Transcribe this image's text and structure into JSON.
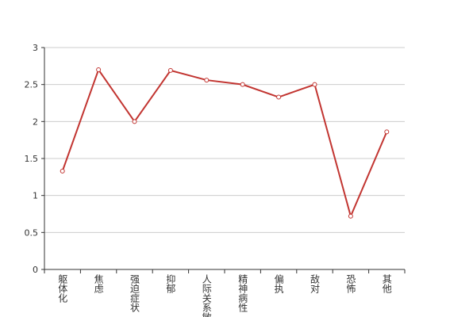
{
  "chart_data": {
    "type": "line",
    "categories": [
      "躯体化",
      "焦虑",
      "强迫症状",
      "抑郁",
      "人际关系敏感",
      "精神病性",
      "偏执",
      "敌对",
      "恐怖",
      "其他"
    ],
    "series": [
      {
        "color": "#c23531",
        "values": [
          1.33,
          2.7,
          2.0,
          2.69,
          2.56,
          2.5,
          2.33,
          2.5,
          0.72,
          1.86
        ]
      }
    ],
    "ylim": [
      0,
      3
    ],
    "yticks": [
      0,
      0.5,
      1,
      1.5,
      2,
      2.5,
      3
    ],
    "grid": true
  }
}
